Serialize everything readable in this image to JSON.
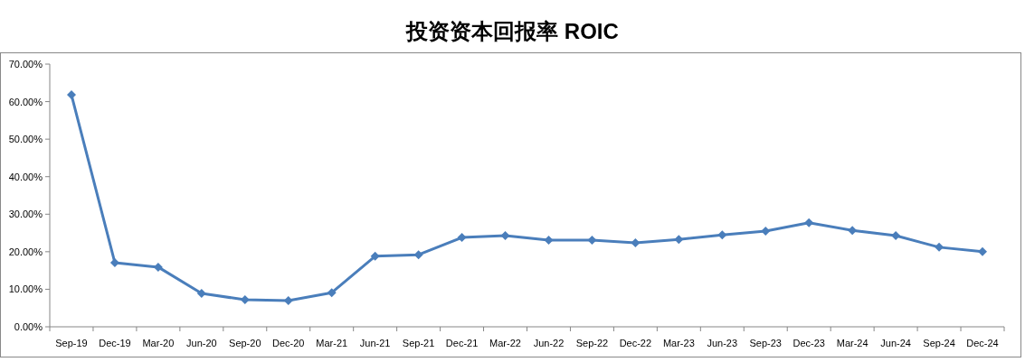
{
  "chart_data": {
    "type": "line",
    "title": "投资资本回报率 ROIC",
    "categories": [
      "Sep-19",
      "Dec-19",
      "Mar-20",
      "Jun-20",
      "Sep-20",
      "Dec-20",
      "Mar-21",
      "Jun-21",
      "Sep-21",
      "Dec-21",
      "Mar-22",
      "Jun-22",
      "Sep-22",
      "Dec-22",
      "Mar-23",
      "Jun-23",
      "Sep-23",
      "Dec-23",
      "Mar-24",
      "Jun-24",
      "Sep-24",
      "Dec-24"
    ],
    "series": [
      {
        "color": "#4a7ebb",
        "values": [
          61.8,
          17.1,
          15.9,
          8.9,
          7.2,
          7.0,
          9.1,
          18.8,
          19.2,
          23.8,
          24.3,
          23.1,
          23.1,
          22.4,
          23.3,
          24.5,
          25.5,
          27.7,
          25.7,
          24.3,
          21.2,
          20.0
        ]
      }
    ],
    "ylim": [
      0,
      70
    ],
    "yticks": [
      {
        "value": 0,
        "label": "0.00%"
      },
      {
        "value": 10,
        "label": "10.00%"
      },
      {
        "value": 20,
        "label": "20.00%"
      },
      {
        "value": 30,
        "label": "30.00%"
      },
      {
        "value": 40,
        "label": "40.00%"
      },
      {
        "value": 50,
        "label": "50.00%"
      },
      {
        "value": 60,
        "label": "60.00%"
      },
      {
        "value": 70,
        "label": "70.00%"
      }
    ],
    "grid": false,
    "marker": "diamond",
    "line_style": "solid"
  }
}
